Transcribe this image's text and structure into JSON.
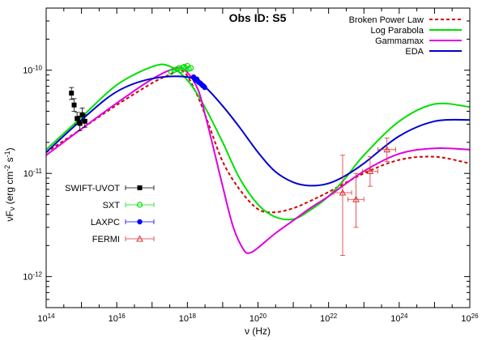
{
  "chart_data": {
    "type": "scatter",
    "title": "Obs ID: S5",
    "xlabel": "ν (Hz)",
    "ylabel_parts": [
      "νF",
      "ν",
      " (erg cm",
      "-2",
      " s",
      "-1",
      ")"
    ],
    "x_scale": "log",
    "y_scale": "log",
    "xlim": [
      100000000000000.0,
      1e+26
    ],
    "ylim": [
      5e-13,
      4e-10
    ],
    "x_ticks": [
      {
        "v": 100000000000000.0,
        "b": "10",
        "e": "14"
      },
      {
        "v": 1e+16,
        "b": "10",
        "e": "16"
      },
      {
        "v": 1e+18,
        "b": "10",
        "e": "18"
      },
      {
        "v": 1e+20,
        "b": "10",
        "e": "20"
      },
      {
        "v": 1e+22,
        "b": "10",
        "e": "22"
      },
      {
        "v": 1e+24,
        "b": "10",
        "e": "24"
      },
      {
        "v": 1e+26,
        "b": "10",
        "e": "26"
      }
    ],
    "y_ticks": [
      {
        "v": 1e-12,
        "b": "10",
        "e": "-12"
      },
      {
        "v": 1e-11,
        "b": "10",
        "e": "-11"
      },
      {
        "v": 1e-10,
        "b": "10",
        "e": "-10"
      }
    ],
    "models": [
      {
        "name": "Broken Power Law",
        "color": "#d40000",
        "dash": "4,3",
        "x": [
          100000000000000.0,
          1000000000000000.0,
          1e+16,
          1e+17,
          3e+17,
          6e+17,
          1e+18,
          2e+18,
          4e+18,
          1e+19,
          3e+19,
          1e+20,
          3e+20,
          1e+21,
          3e+21,
          1e+22,
          1e+23,
          1e+24,
          1e+25,
          1e+26
        ],
        "y": [
          1.6e-11,
          2.7e-11,
          4.6e-11,
          7.5e-11,
          9e-11,
          1e-10,
          8.8e-11,
          5.5e-11,
          3e-11,
          1.3e-11,
          7e-12,
          4.5e-12,
          4.2e-12,
          4.6e-12,
          5.4e-12,
          6.6e-12,
          1e-11,
          1.35e-11,
          1.45e-11,
          1.25e-11
        ]
      },
      {
        "name": "Log Parabola",
        "color": "#00e000",
        "dash": "",
        "x": [
          100000000000000.0,
          1000000000000000.0,
          1e+16,
          1e+17,
          3e+17,
          1e+18,
          3e+18,
          1e+19,
          3e+19,
          1e+20,
          3e+20,
          1e+21,
          3e+21,
          1e+22,
          3e+22,
          1e+23,
          1e+24,
          1e+25,
          1e+26
        ],
        "y": [
          1.7e-11,
          3.5e-11,
          7.2e-11,
          1.08e-10,
          1.1e-10,
          8e-11,
          4.5e-11,
          2e-11,
          9e-12,
          5e-12,
          3.8e-12,
          3.6e-12,
          4.4e-12,
          6e-12,
          9e-12,
          1.5e-11,
          3.2e-11,
          4.7e-11,
          4.4e-11
        ]
      },
      {
        "name": "Gammamax",
        "color": "#e000e0",
        "dash": "",
        "x": [
          100000000000000.0,
          1000000000000000.0,
          1e+16,
          1e+17,
          5e+17,
          1e+18,
          2e+18,
          3e+18,
          5e+18,
          1e+19,
          2e+19,
          4e+19,
          6e+19,
          1e+20,
          3e+20,
          1e+21,
          3e+21,
          1e+22,
          1e+23,
          1e+24,
          1e+25,
          1e+26
        ],
        "y": [
          1.5e-11,
          2.7e-11,
          4.8e-11,
          8.2e-11,
          1.05e-10,
          9.5e-11,
          6.5e-11,
          4e-11,
          2e-11,
          7.5e-12,
          3e-12,
          1.8e-12,
          1.7e-12,
          1.9e-12,
          2.6e-12,
          3.5e-12,
          4.6e-12,
          6e-12,
          1.05e-11,
          1.55e-11,
          1.75e-11,
          1.7e-11
        ]
      },
      {
        "name": "EDA",
        "color": "#0000d0",
        "dash": "",
        "x": [
          100000000000000.0,
          1000000000000000.0,
          1e+16,
          1e+17,
          1e+18,
          3e+18,
          1e+19,
          3e+19,
          1e+20,
          3e+20,
          1e+21,
          3e+21,
          1e+22,
          3e+22,
          1e+23,
          1e+24,
          1e+25,
          1e+26
        ],
        "y": [
          1.6e-11,
          3.3e-11,
          6.2e-11,
          8.3e-11,
          8.6e-11,
          7e-11,
          4.5e-11,
          2.8e-11,
          1.6e-11,
          1.05e-11,
          8.2e-12,
          7.6e-12,
          8e-12,
          9.5e-12,
          1.25e-11,
          2.3e-11,
          3.2e-11,
          3.3e-11
        ]
      }
    ],
    "datasets": [
      {
        "name": "SWIFT-UVOT",
        "color": "#000000",
        "marker": "square-filled",
        "points": [
          {
            "x": 520000000000000.0,
            "y": 6e-11,
            "dy": [
              5.2e-11,
              6.8e-11
            ]
          },
          {
            "x": 620000000000000.0,
            "y": 4.6e-11,
            "dy": [
              4e-11,
              5.3e-11
            ]
          },
          {
            "x": 750000000000000.0,
            "y": 3.4e-11,
            "dy": [
              3e-11,
              3.9e-11
            ]
          },
          {
            "x": 900000000000000.0,
            "y": 3.05e-11,
            "dy": [
              2.6e-11,
              3.6e-11
            ]
          },
          {
            "x": 1050000000000000.0,
            "y": 3.7e-11,
            "dy": [
              3.2e-11,
              4.3e-11
            ]
          },
          {
            "x": 1250000000000000.0,
            "y": 3.2e-11,
            "dy": [
              2.8e-11,
              3.7e-11
            ]
          }
        ]
      },
      {
        "name": "SXT",
        "color": "#00e000",
        "marker": "circle-open",
        "points": [
          {
            "x": 3.5e+17,
            "y": 9.6e-11
          },
          {
            "x": 4.2e+17,
            "y": 1e-10
          },
          {
            "x": 5e+17,
            "y": 1.02e-10
          },
          {
            "x": 5.8e+17,
            "y": 1.05e-10
          },
          {
            "x": 6.6e+17,
            "y": 1e-10
          },
          {
            "x": 7.4e+17,
            "y": 1.06e-10
          },
          {
            "x": 8.2e+17,
            "y": 1.08e-10
          },
          {
            "x": 9e+17,
            "y": 1.04e-10
          },
          {
            "x": 1e+18,
            "y": 1.1e-10
          },
          {
            "x": 1.1e+18,
            "y": 1.03e-10
          },
          {
            "x": 1.25e+18,
            "y": 1.05e-10
          }
        ]
      },
      {
        "name": "LAXPC",
        "color": "#0000ff",
        "marker": "circle-filled",
        "points": [
          {
            "x": 1.5e+18,
            "y": 8.6e-11
          },
          {
            "x": 1.6e+18,
            "y": 8.3e-11
          },
          {
            "x": 1.7e+18,
            "y": 8e-11
          },
          {
            "x": 1.85e+18,
            "y": 8.2e-11
          },
          {
            "x": 2e+18,
            "y": 7.8e-11
          },
          {
            "x": 2.15e+18,
            "y": 7.6e-11
          },
          {
            "x": 2.3e+18,
            "y": 7.5e-11
          },
          {
            "x": 2.5e+18,
            "y": 7.3e-11
          },
          {
            "x": 2.7e+18,
            "y": 7.1e-11
          },
          {
            "x": 2.9e+18,
            "y": 7e-11
          },
          {
            "x": 3.1e+18,
            "y": 6.8e-11
          }
        ]
      },
      {
        "name": "FERMI",
        "color": "#e03030",
        "marker": "triangle-open",
        "points": [
          {
            "x": 2.5e+22,
            "y": 6.5e-12,
            "dx": [
              1.4e+22,
              4.5e+22
            ],
            "dy": [
              1.6e-12,
              1.5e-11
            ]
          },
          {
            "x": 6e+22,
            "y": 5.6e-12,
            "dx": [
              3.5e+22,
              1e+23
            ],
            "dy": [
              3e-12,
              1e-11
            ]
          },
          {
            "x": 1.5e+23,
            "y": 1.05e-11,
            "dx": [
              9e+22,
              2.5e+23
            ],
            "dy": [
              7.5e-12,
              1.45e-11
            ]
          },
          {
            "x": 4.5e+23,
            "y": 1.7e-11,
            "dx": [
              2.5e+23,
              8e+23
            ],
            "dy": [
              1.3e-11,
              2.2e-11
            ]
          }
        ]
      }
    ]
  }
}
